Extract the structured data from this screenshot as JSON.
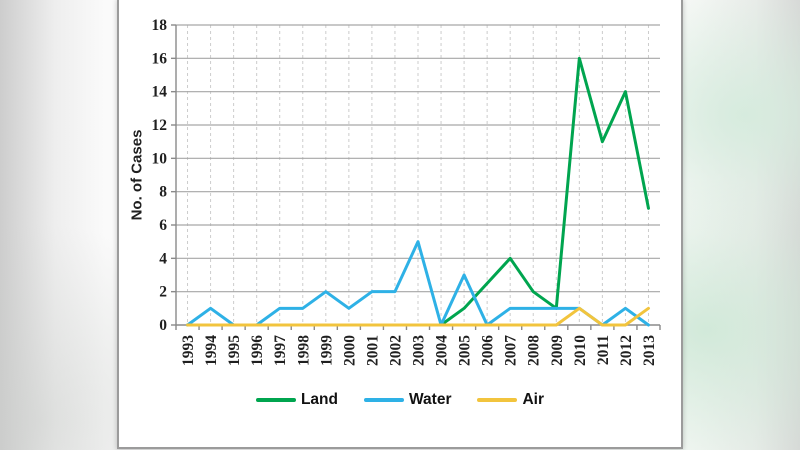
{
  "card": {
    "background": "#ffffff",
    "border_color": "#9b9b9b"
  },
  "chart_data": {
    "type": "line",
    "title": "",
    "xlabel": "",
    "ylabel": "No. of Cases",
    "ylim": [
      0,
      18
    ],
    "ytick_step": 2,
    "grid": {
      "horizontal": "solid",
      "vertical": "dashed"
    },
    "legend_position": "bottom",
    "axis_color": "#8a8a8a",
    "gridline_color": "#a6a6a6",
    "v_gridline_color": "#cccccc",
    "tick_label_color": "#1f1f1f",
    "categories": [
      "1993",
      "1994",
      "1995",
      "1996",
      "1997",
      "1998",
      "1999",
      "2000",
      "2001",
      "2002",
      "2003",
      "2004",
      "2005",
      "2006",
      "2007",
      "2008",
      "2009",
      "2010",
      "2011",
      "2012",
      "2013"
    ],
    "series": [
      {
        "name": "Land",
        "color": "#00a54f",
        "values": [
          0,
          0,
          0,
          0,
          0,
          0,
          0,
          0,
          0,
          0,
          0,
          0,
          1,
          2.5,
          4,
          2,
          1,
          16,
          11,
          14,
          7
        ]
      },
      {
        "name": "Water",
        "color": "#2eb1e6",
        "values": [
          0,
          1,
          0,
          0,
          1,
          1,
          2,
          1,
          2,
          2,
          5,
          0,
          3,
          0,
          1,
          1,
          1,
          1,
          0,
          1,
          0
        ]
      },
      {
        "name": "Air",
        "color": "#f2c43d",
        "values": [
          0,
          0,
          0,
          0,
          0,
          0,
          0,
          0,
          0,
          0,
          0,
          0,
          0,
          0,
          0,
          0,
          0,
          1,
          0,
          0,
          1
        ]
      }
    ]
  }
}
